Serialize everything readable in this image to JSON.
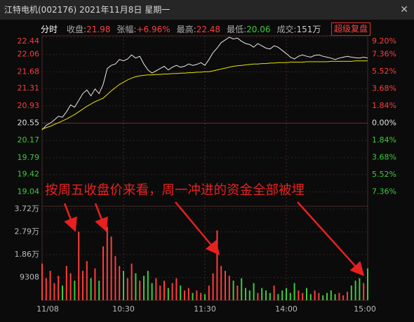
{
  "window": {
    "title": "江特电机(002176) 2021年11月8日 星期一"
  },
  "header": {
    "tab": "分时",
    "button": "超级复盘",
    "stats": [
      {
        "label": "收盘:",
        "value": "21.98",
        "color": "#ff3c3c"
      },
      {
        "label": "张幅:",
        "value": "+6.96%",
        "color": "#ff3c3c"
      },
      {
        "label": "最高:",
        "value": "22.48",
        "color": "#ff3c3c"
      },
      {
        "label": "最低:",
        "value": "20.06",
        "color": "#3ccc3c"
      },
      {
        "label": "成交:",
        "value": "151万",
        "color": "#cccccc"
      }
    ]
  },
  "chart_data": [
    {
      "type": "line",
      "annotation": "按周五收盘价来看，周一冲进的资金全部被埋",
      "x": [
        0,
        3,
        6,
        9,
        12,
        15,
        18,
        21,
        24,
        27,
        30,
        33,
        36,
        39,
        42,
        45,
        48,
        51,
        54,
        57,
        60,
        63,
        66,
        69,
        72,
        75,
        78,
        81,
        84,
        87,
        90,
        93,
        96,
        99,
        102,
        105,
        108,
        111,
        114,
        117,
        120,
        123,
        126,
        129,
        132,
        135,
        138,
        141,
        144,
        147,
        150,
        153,
        156,
        159,
        162,
        165,
        168,
        171,
        174,
        177,
        180,
        183,
        186,
        189,
        192,
        195,
        198,
        201,
        204,
        207,
        210,
        213,
        216,
        219,
        222,
        225,
        228,
        231,
        234,
        237,
        240
      ],
      "xlim": [
        0,
        240
      ],
      "xticks": [
        {
          "value": 0,
          "label": "11/08"
        },
        {
          "value": 60,
          "label": "10:30"
        },
        {
          "value": 120,
          "label": "11:30"
        },
        {
          "value": 180,
          "label": "14:00"
        },
        {
          "value": 240,
          "label": "15:00"
        }
      ],
      "ylim": [
        18.66,
        22.44
      ],
      "yticks": [
        22.44,
        22.06,
        21.68,
        21.31,
        20.93,
        20.55,
        20.17,
        19.79,
        19.42,
        19.04
      ],
      "y2lim": [
        -9.2,
        9.2
      ],
      "y2ticks": [
        {
          "value": 9.2,
          "label": "9.20%"
        },
        {
          "value": 7.36,
          "label": "7.36%"
        },
        {
          "value": 5.52,
          "label": "5.52%"
        },
        {
          "value": 3.68,
          "label": "3.68%"
        },
        {
          "value": 1.84,
          "label": "1.84%"
        },
        {
          "value": 0,
          "label": "0.00%"
        },
        {
          "value": -1.84,
          "label": "1.84%"
        },
        {
          "value": -3.68,
          "label": "3.68%"
        },
        {
          "value": -5.52,
          "label": "5.52%"
        },
        {
          "value": -7.36,
          "label": "7.36%"
        }
      ],
      "up_color": "#ff3c3c",
      "down_color": "#3ccc3c",
      "flat_color": "#e0e0e0",
      "grid": true,
      "series": [
        {
          "color": "#e8e8e8",
          "values": [
            20.4,
            20.5,
            20.55,
            20.62,
            20.7,
            20.68,
            20.8,
            20.95,
            20.9,
            21.05,
            21.2,
            21.28,
            21.15,
            21.3,
            21.2,
            21.4,
            21.75,
            21.82,
            21.85,
            21.95,
            21.92,
            21.96,
            22.05,
            21.98,
            22.02,
            21.85,
            21.72,
            21.65,
            21.7,
            21.75,
            21.8,
            21.72,
            21.78,
            21.82,
            21.78,
            21.8,
            21.85,
            21.82,
            21.84,
            21.88,
            21.82,
            21.95,
            22.1,
            22.2,
            22.32,
            22.38,
            22.44,
            22.4,
            22.42,
            22.35,
            22.3,
            22.28,
            22.22,
            22.3,
            22.25,
            22.2,
            22.18,
            22.25,
            22.22,
            22.15,
            22.08,
            22.0,
            21.96,
            22.02,
            22.05,
            22.02,
            22.0,
            22.04,
            22.05,
            22.02,
            22.0,
            21.98,
            21.95,
            21.98,
            22.0,
            22.02,
            22.0,
            21.99,
            21.98,
            22.0,
            21.98
          ]
        },
        {
          "color": "#e6e600",
          "values": [
            20.42,
            20.45,
            20.48,
            20.52,
            20.56,
            20.6,
            20.64,
            20.69,
            20.74,
            20.8,
            20.86,
            20.92,
            20.97,
            21.02,
            21.06,
            21.1,
            21.18,
            21.26,
            21.33,
            21.4,
            21.45,
            21.5,
            21.54,
            21.57,
            21.59,
            21.6,
            21.61,
            21.61,
            21.62,
            21.62,
            21.63,
            21.63,
            21.64,
            21.64,
            21.65,
            21.65,
            21.66,
            21.66,
            21.67,
            21.67,
            21.68,
            21.68,
            21.7,
            21.72,
            21.74,
            21.76,
            21.78,
            21.8,
            21.81,
            21.82,
            21.83,
            21.84,
            21.85,
            21.85,
            21.86,
            21.86,
            21.87,
            21.87,
            21.88,
            21.88,
            21.88,
            21.89,
            21.89,
            21.89,
            21.89,
            21.9,
            21.9,
            21.9,
            21.9,
            21.9,
            21.9,
            21.91,
            21.91,
            21.91,
            21.91,
            21.91,
            21.91,
            21.92,
            21.92,
            21.92,
            21.92
          ]
        }
      ]
    },
    {
      "type": "bar",
      "x": [
        0,
        3,
        6,
        9,
        12,
        15,
        18,
        21,
        24,
        27,
        30,
        33,
        36,
        39,
        42,
        45,
        48,
        51,
        54,
        57,
        60,
        63,
        66,
        69,
        72,
        75,
        78,
        81,
        84,
        87,
        90,
        93,
        96,
        99,
        102,
        105,
        108,
        111,
        114,
        117,
        120,
        123,
        126,
        129,
        132,
        135,
        138,
        141,
        144,
        147,
        150,
        153,
        156,
        159,
        162,
        165,
        168,
        171,
        174,
        177,
        180,
        183,
        186,
        189,
        192,
        195,
        198,
        201,
        204,
        207,
        210,
        213,
        216,
        219,
        222,
        225,
        228,
        231,
        234,
        237,
        240
      ],
      "xlim": [
        0,
        240
      ],
      "ylim": [
        0,
        37232
      ],
      "yticks": [
        {
          "value": 37232,
          "label": "3.72万"
        },
        {
          "value": 27924,
          "label": "2.79万"
        },
        {
          "value": 18616,
          "label": "1.86万"
        },
        9308
      ],
      "up_color": "#ff3c3c",
      "down_color": "#3ccc3c",
      "values": [
        15000,
        9000,
        12000,
        7000,
        10000,
        6000,
        14000,
        11000,
        8000,
        28000,
        12000,
        16000,
        9000,
        13000,
        8000,
        22000,
        30000,
        26000,
        18000,
        14000,
        12000,
        9000,
        15000,
        11000,
        8000,
        10000,
        12000,
        7000,
        9000,
        6000,
        8000,
        5000,
        7000,
        9000,
        6000,
        4000,
        5000,
        3000,
        4000,
        3000,
        2500,
        6000,
        11000,
        28500,
        14000,
        12000,
        10000,
        8000,
        6000,
        9000,
        5000,
        4000,
        7000,
        3000,
        5000,
        4000,
        3000,
        6000,
        2500,
        4000,
        5000,
        3000,
        7000,
        4000,
        3000,
        5000,
        2500,
        4000,
        3000,
        2000,
        3000,
        4000,
        2500,
        3000,
        2000,
        3500,
        6000,
        8000,
        9000,
        7000,
        13000
      ]
    }
  ]
}
